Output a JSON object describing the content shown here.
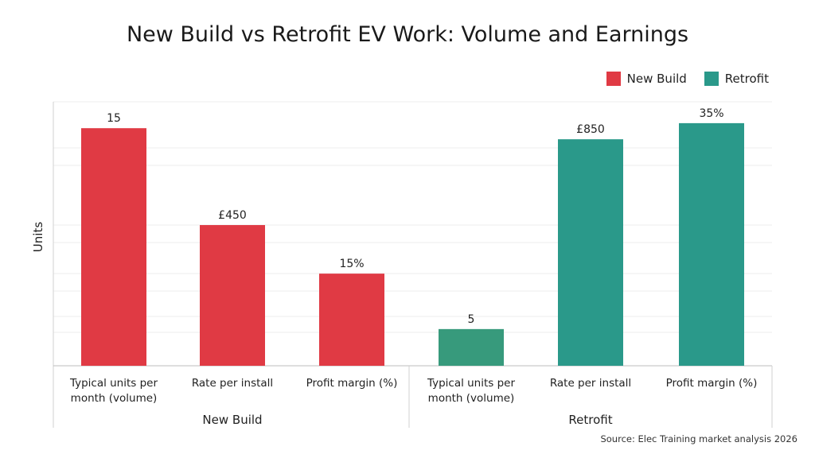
{
  "chart_data": {
    "type": "bar",
    "title": "New Build vs Retrofit EV Work: Volume and Earnings",
    "ylabel": "Units",
    "xlabel": "",
    "grid": true,
    "legend_placement": "top-right",
    "groups": [
      {
        "name": "New Build",
        "categories": [
          "Typical units per month (volume)",
          "Rate per install",
          "Profit margin (%)"
        ]
      },
      {
        "name": "Retrofit",
        "categories": [
          "Typical units per month (volume)",
          "Rate per install",
          "Profit margin (%)"
        ]
      }
    ],
    "category_lines": [
      [
        "Typical units per",
        "month (volume)"
      ],
      [
        "Rate per install"
      ],
      [
        "Profit margin (%)"
      ]
    ],
    "series": [
      {
        "name": "New Build",
        "color": "#e03a44",
        "values": [
          15,
          450,
          15
        ],
        "labels": [
          "15",
          "£450",
          "15%"
        ]
      },
      {
        "name": "Retrofit",
        "color": "#2a998a",
        "values": [
          5,
          850,
          35
        ],
        "labels": [
          "5",
          "£850",
          "35%"
        ]
      }
    ],
    "source": "Source: Elec Training market analysis 2026"
  }
}
